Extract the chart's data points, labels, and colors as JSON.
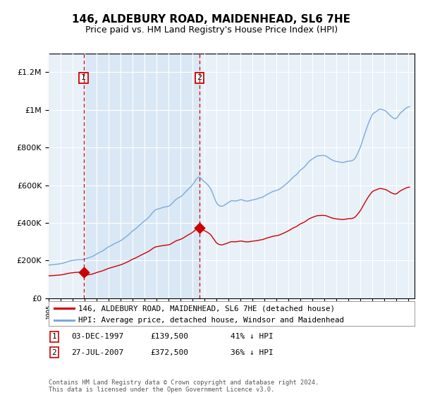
{
  "title": "146, ALDEBURY ROAD, MAIDENHEAD, SL6 7HE",
  "subtitle": "Price paid vs. HM Land Registry's House Price Index (HPI)",
  "background_color": "#ffffff",
  "plot_bg_color": "#e8f0f8",
  "grid_color": "#ffffff",
  "band_color": "#d0e4f5",
  "hpi_color": "#7aabdc",
  "price_color": "#cc0000",
  "vline_color": "#cc0000",
  "annotation_box_color": "#cc0000",
  "purchase1_date_num": 1997.92,
  "purchase1_price": 139500,
  "purchase2_date_num": 2007.57,
  "purchase2_price": 372500,
  "legend_entry1": "146, ALDEBURY ROAD, MAIDENHEAD, SL6 7HE (detached house)",
  "legend_entry2": "HPI: Average price, detached house, Windsor and Maidenhead",
  "footer": "Contains HM Land Registry data © Crown copyright and database right 2024.\nThis data is licensed under the Open Government Licence v3.0.",
  "xmin": 1995.0,
  "xmax": 2025.5,
  "ymin": 0,
  "ymax": 1300000
}
